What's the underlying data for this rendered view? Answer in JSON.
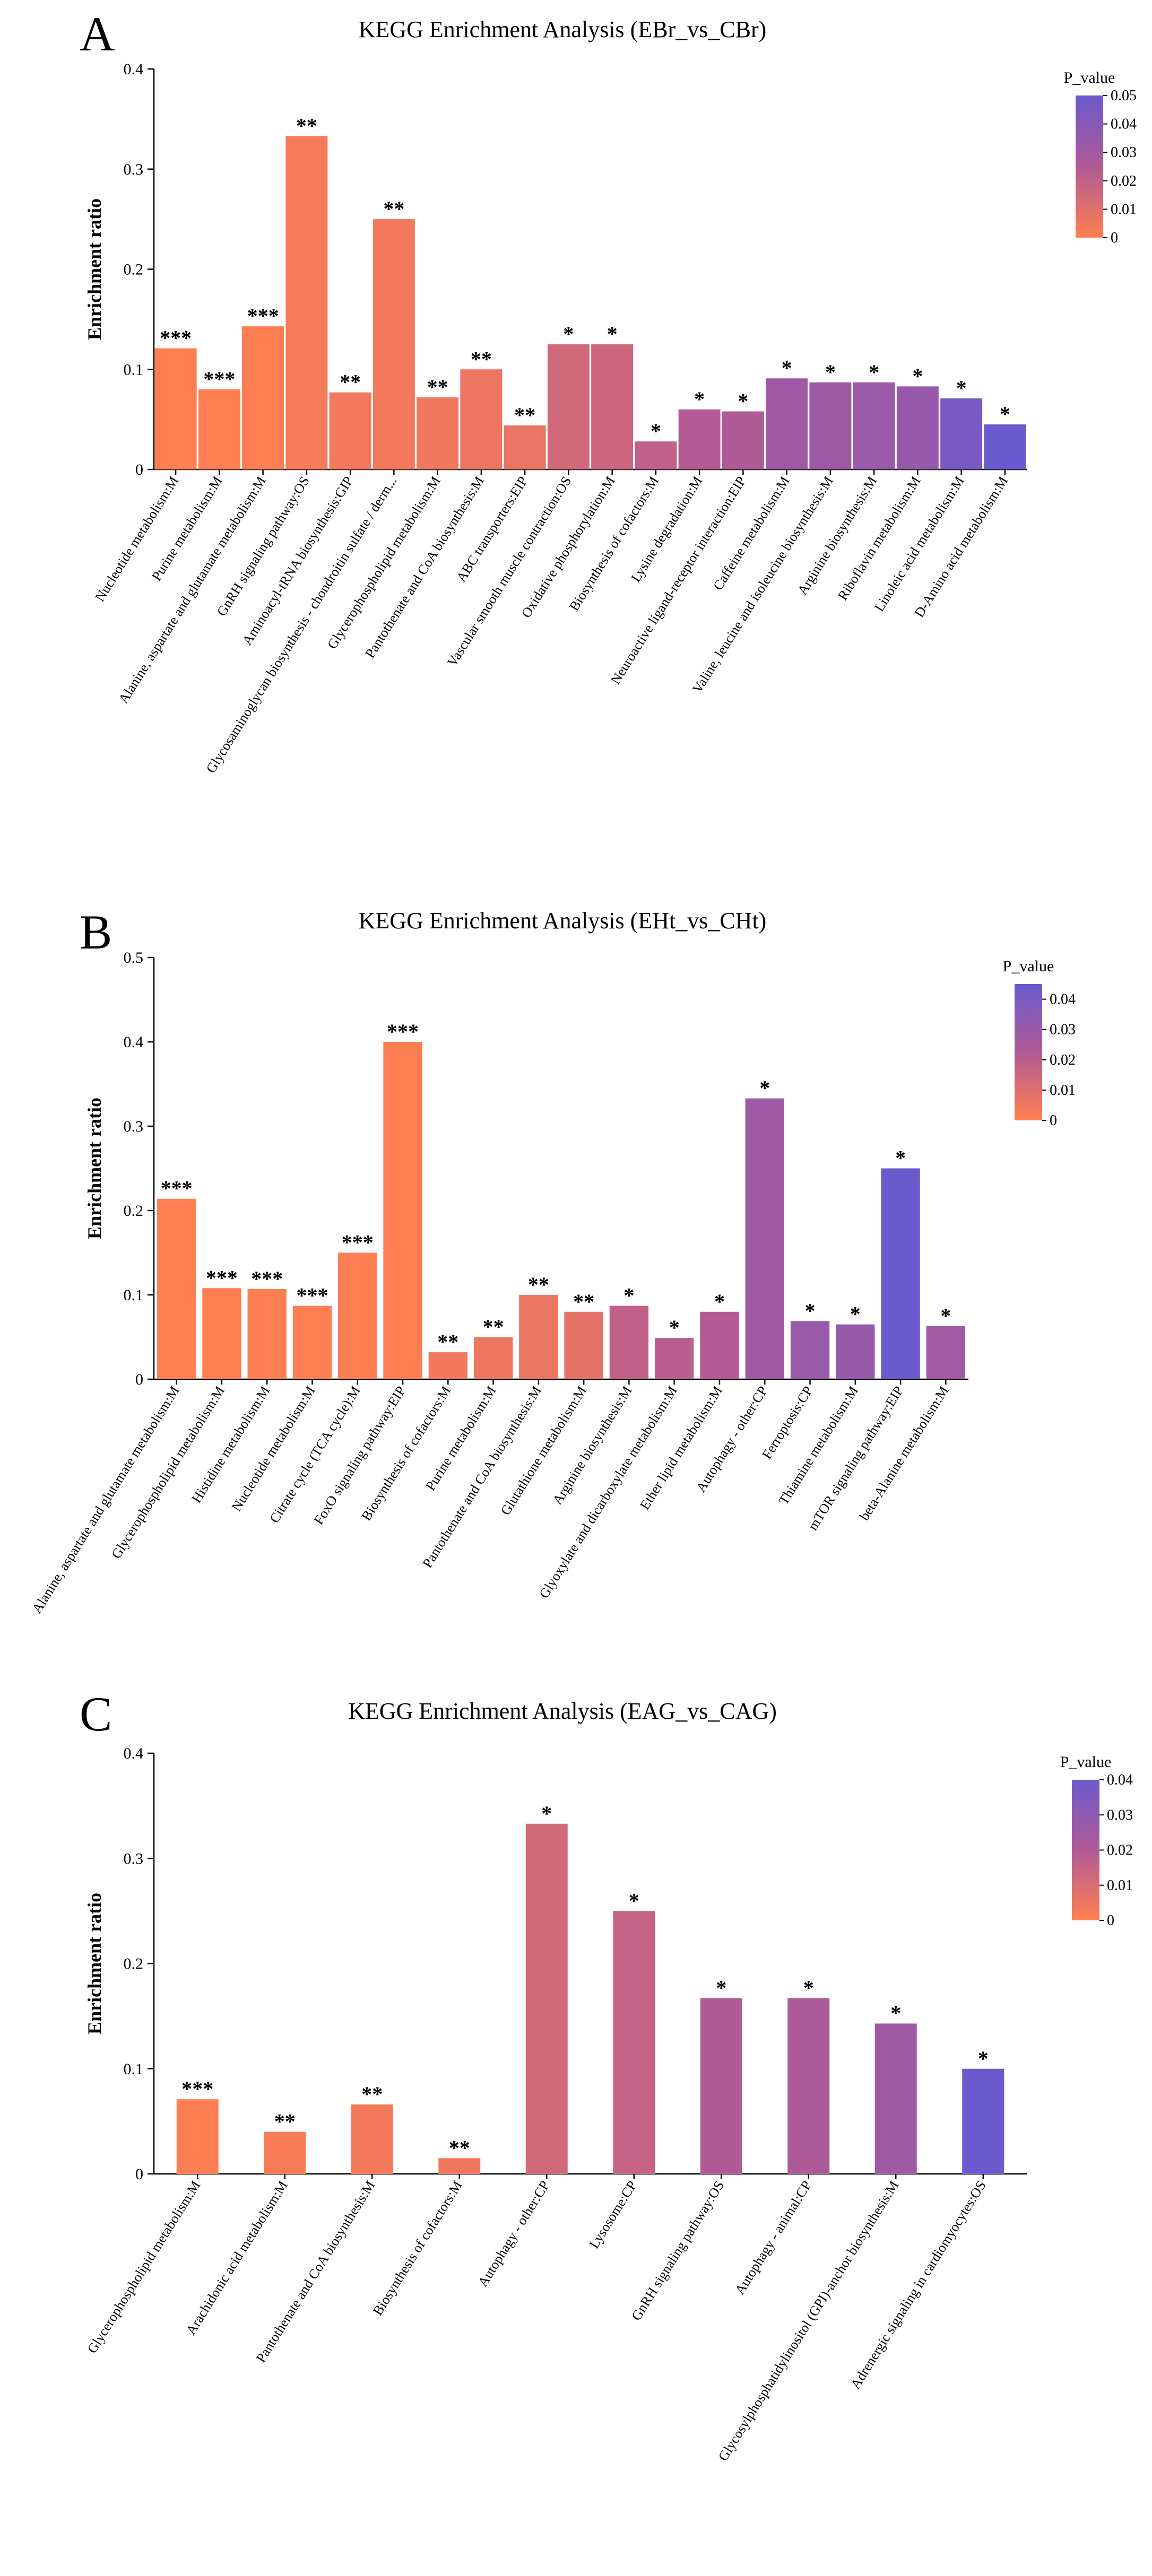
{
  "figure": {
    "colorbar_label": "P_value",
    "colors": {
      "low": "#FF7F50",
      "mid": "#B05A96",
      "high": "#6A5ACD",
      "star": "#FF3333"
    }
  },
  "chart_data": [
    {
      "panel": "A",
      "type": "bar",
      "title": "KEGG Enrichment Analysis (EBr_vs_CBr)",
      "xlabel": "",
      "ylabel": "Enrichment ratio",
      "ylim": [
        0,
        0.4
      ],
      "yticks": [
        "0",
        "0.1",
        "0.2",
        "0.3",
        "0.4"
      ],
      "colorbar": {
        "min": 0,
        "max": 0.05,
        "ticks": [
          "0",
          "0.01",
          "0.02",
          "0.03",
          "0.04",
          "0.05"
        ]
      },
      "categories": [
        "Nucleotide metabolism:M",
        "Purine metabolism:M",
        "Alanine, aspartate and glutamate metabolism:M",
        "GnRH signaling pathway:OS",
        "Aminoacyl-tRNA biosynthesis:GIP",
        "Glycosaminoglycan biosynthesis - chondroitin sulfate / derm...",
        "Glycerophospholipid metabolism:M",
        "Pantothenate and CoA biosynthesis:M",
        "ABC transporters:EIP",
        "Vascular smooth muscle contraction:OS",
        "Oxidative phosphorylation:M",
        "Biosynthesis of cofactors:M",
        "Lysine degradation:M",
        "Neuroactive ligand-receptor interaction:EIP",
        "Caffeine metabolism:M",
        "Valine, leucine and isoleucine biosynthesis:M",
        "Arginine biosynthesis:M",
        "Riboflavin metabolism:M",
        "Linoleic acid metabolism:M",
        "D-Amino acid metabolism:M"
      ],
      "values": [
        0.121,
        0.08,
        0.143,
        0.333,
        0.077,
        0.25,
        0.072,
        0.1,
        0.044,
        0.125,
        0.125,
        0.028,
        0.06,
        0.058,
        0.091,
        0.087,
        0.087,
        0.083,
        0.071,
        0.045
      ],
      "pvalues": [
        0.0005,
        0.0008,
        0.0006,
        0.003,
        0.004,
        0.004,
        0.005,
        0.006,
        0.007,
        0.015,
        0.016,
        0.02,
        0.024,
        0.025,
        0.031,
        0.032,
        0.033,
        0.034,
        0.045,
        0.05
      ],
      "stars": [
        "***",
        "***",
        "***",
        "**",
        "**",
        "**",
        "**",
        "**",
        "**",
        "*",
        "*",
        "*",
        "*",
        "*",
        "*",
        "*",
        "*",
        "*",
        "*",
        "*"
      ]
    },
    {
      "panel": "B",
      "type": "bar",
      "title": "KEGG Enrichment Analysis (EHt_vs_CHt)",
      "xlabel": "",
      "ylabel": "Enrichment ratio",
      "ylim": [
        0,
        0.5
      ],
      "yticks": [
        "0",
        "0.1",
        "0.2",
        "0.3",
        "0.4",
        "0.5"
      ],
      "colorbar": {
        "min": 0,
        "max": 0.045,
        "ticks": [
          "0",
          "0.01",
          "0.02",
          "0.03",
          "0.04"
        ]
      },
      "categories": [
        "Alanine, aspartate and glutamate metabolism:M",
        "Glycerophospholipid metabolism:M",
        "Histidine metabolism:M",
        "Nucleotide metabolism:M",
        "Citrate cycle (TCA cycle):M",
        "FoxO signaling pathway:EIP",
        "Biosynthesis of cofactors:M",
        "Purine metabolism:M",
        "Pantothenate and CoA biosynthesis:M",
        "Glutathione metabolism:M",
        "Arginine biosynthesis:M",
        "Glyoxylate and dicarboxylate metabolism:M",
        "Ether lipid metabolism:M",
        "Autophagy - other:CP",
        "Ferroptosis:CP",
        "Thiamine metabolism:M",
        "mTOR signaling pathway:EIP",
        "beta-Alanine metabolism:M"
      ],
      "values": [
        0.214,
        0.108,
        0.107,
        0.087,
        0.15,
        0.4,
        0.032,
        0.05,
        0.1,
        0.08,
        0.087,
        0.049,
        0.08,
        0.333,
        0.069,
        0.065,
        0.25,
        0.063
      ],
      "pvalues": [
        0.0003,
        0.0004,
        0.0005,
        0.0006,
        0.0007,
        0.0008,
        0.004,
        0.005,
        0.006,
        0.008,
        0.018,
        0.02,
        0.022,
        0.028,
        0.03,
        0.031,
        0.045,
        0.027
      ],
      "stars": [
        "***",
        "***",
        "***",
        "***",
        "***",
        "***",
        "**",
        "**",
        "**",
        "**",
        "*",
        "*",
        "*",
        "*",
        "*",
        "*",
        "*",
        "*"
      ]
    },
    {
      "panel": "C",
      "type": "bar",
      "title": "KEGG Enrichment Analysis (EAG_vs_CAG)",
      "xlabel": "",
      "ylabel": "Enrichment ratio",
      "ylim": [
        0,
        0.4
      ],
      "yticks": [
        "0",
        "0.1",
        "0.2",
        "0.3",
        "0.4"
      ],
      "colorbar": {
        "min": 0,
        "max": 0.04,
        "ticks": [
          "0",
          "0.01",
          "0.02",
          "0.03",
          "0.04"
        ]
      },
      "categories": [
        "Glycerophospholipid metabolism:M",
        "Arachidonic acid metabolism:M",
        "Pantothenate and CoA biosynthesis:M",
        "Biosynthesis of cofactors:M",
        "Autophagy - other:CP",
        "Lysosome:CP",
        "GnRH signaling pathway:OS",
        "Autophagy - animal:CP",
        "Glycosylphosphatidylinositol (GPI)-anchor biosynthesis:M",
        "Adrenergic signaling in cardiomyocytes:OS"
      ],
      "values": [
        0.071,
        0.04,
        0.066,
        0.015,
        0.333,
        0.25,
        0.167,
        0.167,
        0.143,
        0.1
      ],
      "pvalues": [
        0.0005,
        0.002,
        0.003,
        0.004,
        0.012,
        0.015,
        0.02,
        0.021,
        0.025,
        0.04
      ],
      "stars": [
        "***",
        "**",
        "**",
        "**",
        "*",
        "*",
        "*",
        "*",
        "*",
        "*"
      ]
    }
  ]
}
